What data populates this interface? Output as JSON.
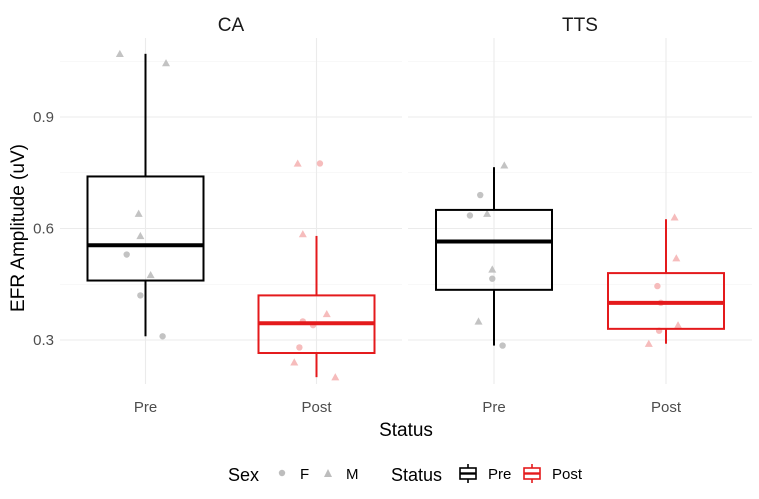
{
  "chart_data": {
    "type": "boxplot",
    "xlabel": "Status",
    "ylabel": "EFR Amplitude (uV)",
    "ylim": [
      0.17,
      1.1
    ],
    "yticks": [
      "0.3",
      "0.6",
      "0.9"
    ],
    "ytick_values": [
      0.3,
      0.6,
      0.9
    ],
    "grid": true,
    "categories": [
      "Pre",
      "Post"
    ],
    "colors": {
      "Pre": "#000000",
      "Post": "#e41a1c",
      "points_Pre": "#bdbdbd",
      "points_Post": "#f5b5b5"
    },
    "facets": [
      {
        "title": "CA",
        "boxes": [
          {
            "status": "Pre",
            "min": 0.31,
            "q1": 0.46,
            "median": 0.555,
            "q3": 0.74,
            "max": 1.07
          },
          {
            "status": "Post",
            "min": 0.2,
            "q1": 0.265,
            "median": 0.345,
            "q3": 0.42,
            "max": 0.58
          }
        ],
        "points": [
          {
            "status": "Pre",
            "sex": "M",
            "jitter": -0.15,
            "y": 1.07
          },
          {
            "status": "Pre",
            "sex": "M",
            "jitter": 0.12,
            "y": 1.045
          },
          {
            "status": "Pre",
            "sex": "M",
            "jitter": -0.04,
            "y": 0.64
          },
          {
            "status": "Pre",
            "sex": "M",
            "jitter": -0.03,
            "y": 0.58
          },
          {
            "status": "Pre",
            "sex": "F",
            "jitter": -0.11,
            "y": 0.53
          },
          {
            "status": "Pre",
            "sex": "M",
            "jitter": 0.03,
            "y": 0.475
          },
          {
            "status": "Pre",
            "sex": "F",
            "jitter": -0.03,
            "y": 0.42
          },
          {
            "status": "Pre",
            "sex": "F",
            "jitter": 0.1,
            "y": 0.31
          },
          {
            "status": "Post",
            "sex": "M",
            "jitter": -0.11,
            "y": 0.775
          },
          {
            "status": "Post",
            "sex": "F",
            "jitter": 0.02,
            "y": 0.775
          },
          {
            "status": "Post",
            "sex": "M",
            "jitter": -0.08,
            "y": 0.585
          },
          {
            "status": "Post",
            "sex": "M",
            "jitter": 0.06,
            "y": 0.37
          },
          {
            "status": "Post",
            "sex": "F",
            "jitter": -0.08,
            "y": 0.35
          },
          {
            "status": "Post",
            "sex": "F",
            "jitter": -0.02,
            "y": 0.34
          },
          {
            "status": "Post",
            "sex": "F",
            "jitter": -0.1,
            "y": 0.28
          },
          {
            "status": "Post",
            "sex": "M",
            "jitter": -0.13,
            "y": 0.24
          },
          {
            "status": "Post",
            "sex": "M",
            "jitter": 0.11,
            "y": 0.2
          }
        ]
      },
      {
        "title": "TTS",
        "boxes": [
          {
            "status": "Pre",
            "min": 0.285,
            "q1": 0.435,
            "median": 0.565,
            "q3": 0.65,
            "max": 0.765
          },
          {
            "status": "Post",
            "min": 0.29,
            "q1": 0.33,
            "median": 0.4,
            "q3": 0.48,
            "max": 0.625
          }
        ],
        "points": [
          {
            "status": "Pre",
            "sex": "M",
            "jitter": 0.06,
            "y": 0.77
          },
          {
            "status": "Pre",
            "sex": "F",
            "jitter": -0.08,
            "y": 0.69
          },
          {
            "status": "Pre",
            "sex": "M",
            "jitter": -0.04,
            "y": 0.64
          },
          {
            "status": "Pre",
            "sex": "F",
            "jitter": -0.14,
            "y": 0.635
          },
          {
            "status": "Pre",
            "sex": "M",
            "jitter": -0.01,
            "y": 0.49
          },
          {
            "status": "Pre",
            "sex": "F",
            "jitter": -0.01,
            "y": 0.465
          },
          {
            "status": "Pre",
            "sex": "M",
            "jitter": -0.09,
            "y": 0.35
          },
          {
            "status": "Pre",
            "sex": "F",
            "jitter": 0.05,
            "y": 0.285
          },
          {
            "status": "Post",
            "sex": "M",
            "jitter": 0.05,
            "y": 0.63
          },
          {
            "status": "Post",
            "sex": "M",
            "jitter": 0.06,
            "y": 0.52
          },
          {
            "status": "Post",
            "sex": "F",
            "jitter": -0.05,
            "y": 0.445
          },
          {
            "status": "Post",
            "sex": "F",
            "jitter": -0.03,
            "y": 0.4
          },
          {
            "status": "Post",
            "sex": "M",
            "jitter": 0.07,
            "y": 0.34
          },
          {
            "status": "Post",
            "sex": "F",
            "jitter": -0.04,
            "y": 0.325
          },
          {
            "status": "Post",
            "sex": "M",
            "jitter": -0.1,
            "y": 0.29
          }
        ]
      }
    ]
  },
  "legend": {
    "sex_title": "Sex",
    "sex_items": [
      {
        "label": "F",
        "shape": "circle"
      },
      {
        "label": "M",
        "shape": "triangle"
      }
    ],
    "status_title": "Status",
    "status_items": [
      {
        "label": "Pre",
        "color": "#000000"
      },
      {
        "label": "Post",
        "color": "#e41a1c"
      }
    ]
  }
}
